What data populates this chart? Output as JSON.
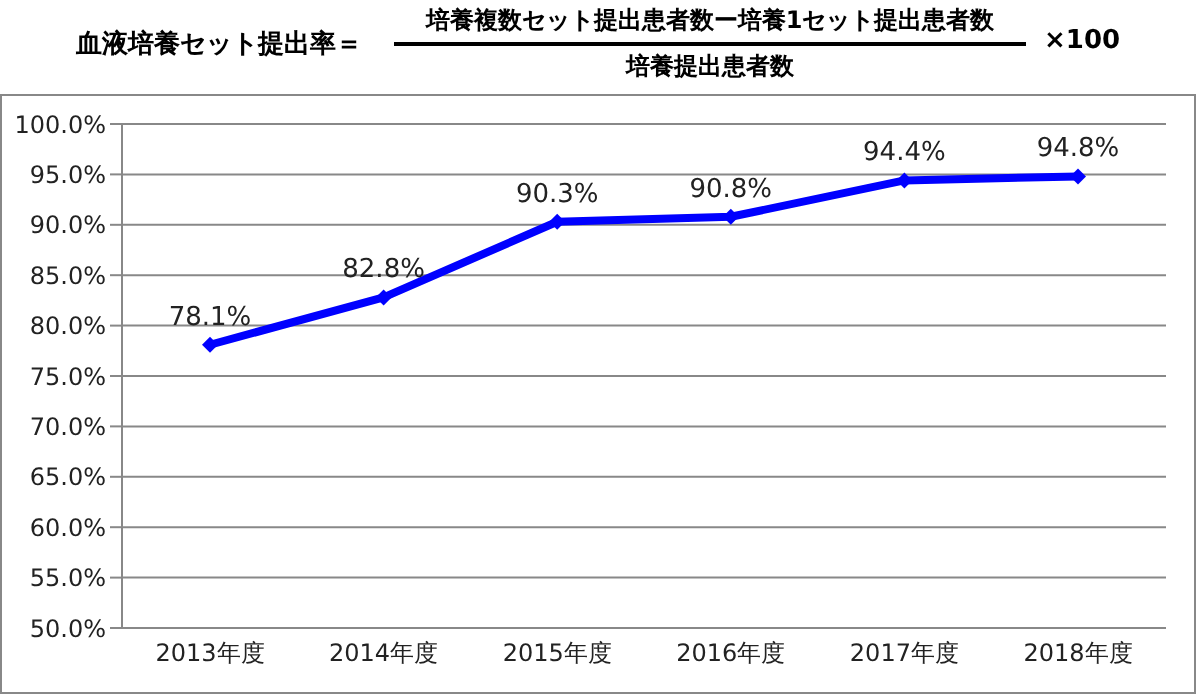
{
  "chart_data": {
    "type": "line",
    "title": "血液培養セット提出率＝",
    "annotations": [
      "培養複数セット提出患者数ー培養1セット提出患者数",
      "培養提出患者数",
      "×100"
    ],
    "categories": [
      "2013年度",
      "2014年度",
      "2015年度",
      "2016年度",
      "2017年度",
      "2018年度"
    ],
    "series": [
      {
        "color": "#0000ff",
        "values": [
          78.1,
          82.8,
          90.3,
          90.8,
          94.4,
          94.8
        ],
        "value_labels": [
          "78.1%",
          "82.8%",
          "90.3%",
          "90.8%",
          "94.4%",
          "94.8%"
        ]
      }
    ],
    "ylim": [
      50,
      100
    ],
    "yticks": [
      {
        "value": 50,
        "label": "50.0%"
      },
      {
        "value": 55,
        "label": "55.0%"
      },
      {
        "value": 60,
        "label": "60.0%"
      },
      {
        "value": 65,
        "label": "65.0%"
      },
      {
        "value": 70,
        "label": "70.0%"
      },
      {
        "value": 75,
        "label": "75.0%"
      },
      {
        "value": 80,
        "label": "80.0%"
      },
      {
        "value": 85,
        "label": "85.0%"
      },
      {
        "value": 90,
        "label": "90.0%"
      },
      {
        "value": 95,
        "label": "95.0%"
      },
      {
        "value": 100,
        "label": "100.0%"
      }
    ],
    "grid": "y",
    "marker": "diamond",
    "line_style": "solid",
    "legend": false
  }
}
